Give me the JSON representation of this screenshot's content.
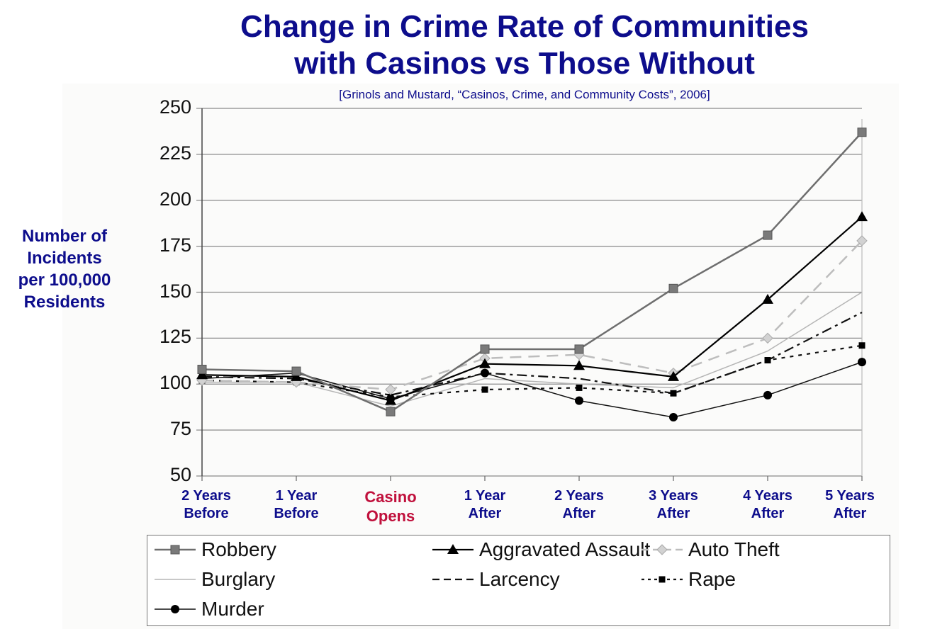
{
  "chart_data": {
    "type": "line",
    "title": "Change in Crime Rate of Communities with Casinos vs Those Without",
    "title_lines": [
      "Change in Crime Rate of Communities",
      "with Casinos vs Those Without"
    ],
    "subtitle": "[Grinols and Mustard, “Casinos, Crime, and Community Costs”, 2006]",
    "ylabel_lines": [
      "Number of",
      "Incidents",
      "per 100,000",
      "Residents"
    ],
    "ylabel": "Number of Incidents per 100,000 Residents",
    "xlabel": "",
    "ylim": [
      50,
      250
    ],
    "yticks": [
      "250",
      "225",
      "200",
      "175",
      "150",
      "125",
      "100",
      "75",
      "50"
    ],
    "grid": true,
    "legend_position": "bottom",
    "categories": [
      [
        "2 Years",
        "Before"
      ],
      [
        "1 Year",
        "Before"
      ],
      [
        "Casino",
        "Opens"
      ],
      [
        "1 Year",
        "After"
      ],
      [
        "2 Years",
        "After"
      ],
      [
        "3 Years",
        "After"
      ],
      [
        "4 Years",
        "After"
      ],
      [
        "5 Years",
        "After"
      ]
    ],
    "highlight_category_color": "#c0103c",
    "series": [
      {
        "name": "Robbery",
        "color": "#6e6e6e",
        "marker": "square",
        "dash": "solid",
        "width": 2.5,
        "values": [
          108,
          107,
          85,
          119,
          119,
          152,
          181,
          237
        ]
      },
      {
        "name": "Aggravated Assault",
        "color": "#000000",
        "marker": "triangle",
        "dash": "solid",
        "width": 2.2,
        "values": [
          105,
          104,
          91,
          111,
          110,
          104,
          146,
          191
        ]
      },
      {
        "name": "Auto Theft",
        "color": "#bdbdbd",
        "marker": "diamond",
        "dash": "long-dash",
        "width": 2.5,
        "values": [
          102,
          101,
          97,
          114,
          116,
          106,
          125,
          178
        ]
      },
      {
        "name": "Burglary",
        "color": "#b5b5b5",
        "marker": "none",
        "dash": "solid",
        "width": 1.5,
        "values": [
          101,
          101,
          88,
          103,
          100,
          98,
          118,
          150
        ]
      },
      {
        "name": "Larcency",
        "color": "#111111",
        "marker": "none",
        "dash": "dash-dot",
        "width": 2.2,
        "values": [
          104,
          103,
          94,
          106,
          103,
          95,
          113,
          139
        ]
      },
      {
        "name": "Rape",
        "color": "#111111",
        "marker": "small-square",
        "dash": "dotted",
        "width": 2.2,
        "values": [
          102,
          101,
          93,
          97,
          98,
          95,
          113,
          121
        ]
      },
      {
        "name": "Murder",
        "color": "#111111",
        "marker": "circle",
        "dash": "solid",
        "width": 1.5,
        "values": [
          103,
          106,
          92,
          106,
          91,
          82,
          94,
          112
        ]
      }
    ]
  }
}
